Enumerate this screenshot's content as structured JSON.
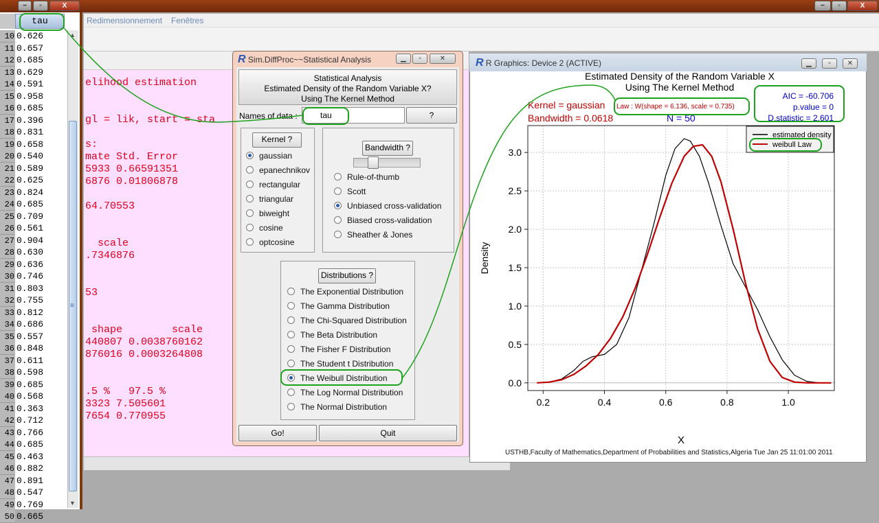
{
  "top_window_controls": {
    "min": "−",
    "max": "▫",
    "close": "X"
  },
  "menubar": {
    "items": [
      "Redimensionnement",
      "Fenêtres"
    ]
  },
  "data_table": {
    "column": "tau",
    "rows": [
      {
        "n": "10",
        "v": "0.626"
      },
      {
        "n": "11",
        "v": "0.657"
      },
      {
        "n": "12",
        "v": "0.685"
      },
      {
        "n": "13",
        "v": "0.629"
      },
      {
        "n": "14",
        "v": "0.591"
      },
      {
        "n": "15",
        "v": "0.958"
      },
      {
        "n": "16",
        "v": "0.685"
      },
      {
        "n": "17",
        "v": "0.396"
      },
      {
        "n": "18",
        "v": "0.831"
      },
      {
        "n": "19",
        "v": "0.658"
      },
      {
        "n": "20",
        "v": "0.540"
      },
      {
        "n": "21",
        "v": "0.589"
      },
      {
        "n": "22",
        "v": "0.625"
      },
      {
        "n": "23",
        "v": "0.824"
      },
      {
        "n": "24",
        "v": "0.685"
      },
      {
        "n": "25",
        "v": "0.709"
      },
      {
        "n": "26",
        "v": "0.561"
      },
      {
        "n": "27",
        "v": "0.904"
      },
      {
        "n": "28",
        "v": "0.630"
      },
      {
        "n": "29",
        "v": "0.636"
      },
      {
        "n": "30",
        "v": "0.746"
      },
      {
        "n": "31",
        "v": "0.803"
      },
      {
        "n": "32",
        "v": "0.755"
      },
      {
        "n": "33",
        "v": "0.812"
      },
      {
        "n": "34",
        "v": "0.686"
      },
      {
        "n": "35",
        "v": "0.557"
      },
      {
        "n": "36",
        "v": "0.848"
      },
      {
        "n": "37",
        "v": "0.611"
      },
      {
        "n": "38",
        "v": "0.598"
      },
      {
        "n": "39",
        "v": "0.685"
      },
      {
        "n": "40",
        "v": "0.568"
      },
      {
        "n": "41",
        "v": "0.363"
      },
      {
        "n": "42",
        "v": "0.712"
      },
      {
        "n": "43",
        "v": "0.766"
      },
      {
        "n": "44",
        "v": "0.685"
      },
      {
        "n": "45",
        "v": "0.463"
      },
      {
        "n": "46",
        "v": "0.882"
      },
      {
        "n": "47",
        "v": "0.891"
      },
      {
        "n": "48",
        "v": "0.547"
      },
      {
        "n": "49",
        "v": "0.769"
      },
      {
        "n": "50",
        "v": "0.665"
      }
    ]
  },
  "console": {
    "lines": [
      "elihood estimation",
      "gl = lik, start = sta",
      "s:",
      "mate Std. Error",
      "5933 0.66591351",
      "6876 0.01806878",
      "64.70553",
      "  scale",
      ".7346876",
      "53",
      " shape        scale",
      "440807 0.0038760162",
      "876016 0.0003264808",
      ".5 %   97.5 %",
      "3323 7.505601",
      "7654 0.770955"
    ]
  },
  "sim_window": {
    "title": "Sim.DiffProc~~Statistical Analysis",
    "header": [
      "Statistical Analysis",
      "Estimated Density of the Random Variable X?",
      "Using The Kernel Method"
    ],
    "names_label": "Names of data :",
    "names_value": "tau",
    "help_btn": "?",
    "kernel_btn": "Kernel ?",
    "kernels": [
      "gaussian",
      "epanechnikov",
      "rectangular",
      "triangular",
      "biweight",
      "cosine",
      "optcosine"
    ],
    "kernel_selected": 0,
    "bandwidth_btn": "Bandwidth ?",
    "bandwidth_slider": 0.25,
    "bandwidths": [
      "Rule-of-thumb",
      "Scott",
      "Unbiased cross-validation",
      "Biased cross-validation",
      "Sheather & Jones"
    ],
    "bandwidth_selected": 2,
    "distributions_btn": "Distributions ?",
    "distributions": [
      "The Exponential Distribution",
      "The Gamma Distribution",
      "The Chi-Squared Distribution",
      "The Beta Distribution",
      "The Fisher F Distribution",
      "The Student t Distribution",
      "The Weibull Distribution",
      "The Log Normal Distribution",
      "The Normal Distribution"
    ],
    "distribution_selected": 6,
    "go_btn": "Go!",
    "quit_btn": "Quit"
  },
  "graphics_window": {
    "title": "R Graphics: Device 2 (ACTIVE)",
    "footer": "USTHB,Faculty of Mathematics,Department of Probabilities and Statistics,Algeria Tue Jan 25 11:01:00 2011"
  },
  "chart_data": {
    "type": "line",
    "title": "Estimated Density of the Random Variable X",
    "subtitle": "Using The Kernel Method",
    "xlabel": "X",
    "ylabel": "Density",
    "xlim": [
      0.15,
      1.15
    ],
    "ylim": [
      -0.1,
      3.35
    ],
    "xticks": [
      "0.2",
      "0.4",
      "0.6",
      "0.8",
      "1.0"
    ],
    "yticks": [
      "0.0",
      "0.5",
      "1.0",
      "1.5",
      "2.0",
      "2.5",
      "3.0"
    ],
    "grid": true,
    "annotations": {
      "kernel": "Kernel = gaussian",
      "bandwidth": "Bandwidth = 0.0618",
      "n": "N = 50",
      "law": "Law : W(shape = 6.136, scale = 0.735)",
      "aic": "AIC = -60.706",
      "pvalue": "p.value = 0",
      "dstat": "D.statistic = 2.601"
    },
    "legend_position": "top-right",
    "series": [
      {
        "name": "estimated density",
        "color": "#000000",
        "x": [
          0.18,
          0.22,
          0.26,
          0.3,
          0.33,
          0.36,
          0.4,
          0.44,
          0.48,
          0.52,
          0.56,
          0.6,
          0.63,
          0.66,
          0.68,
          0.71,
          0.74,
          0.78,
          0.82,
          0.86,
          0.9,
          0.94,
          0.98,
          1.02,
          1.06,
          1.1
        ],
        "y": [
          0.0,
          0.01,
          0.05,
          0.16,
          0.28,
          0.34,
          0.37,
          0.5,
          0.85,
          1.45,
          2.05,
          2.7,
          3.05,
          3.18,
          3.15,
          2.95,
          2.6,
          2.05,
          1.55,
          1.25,
          0.95,
          0.6,
          0.3,
          0.1,
          0.02,
          0.0
        ]
      },
      {
        "name": "weibull Law",
        "color": "#c00000",
        "x": [
          0.18,
          0.22,
          0.26,
          0.3,
          0.34,
          0.38,
          0.42,
          0.46,
          0.5,
          0.54,
          0.58,
          0.62,
          0.66,
          0.69,
          0.72,
          0.75,
          0.78,
          0.82,
          0.86,
          0.9,
          0.94,
          0.98,
          1.02,
          1.06,
          1.1,
          1.14
        ],
        "y": [
          0.0,
          0.01,
          0.04,
          0.11,
          0.22,
          0.37,
          0.58,
          0.86,
          1.23,
          1.67,
          2.15,
          2.6,
          2.95,
          3.08,
          3.1,
          2.95,
          2.62,
          2.0,
          1.3,
          0.7,
          0.28,
          0.07,
          0.01,
          0.0,
          0.0,
          0.0
        ]
      }
    ]
  }
}
